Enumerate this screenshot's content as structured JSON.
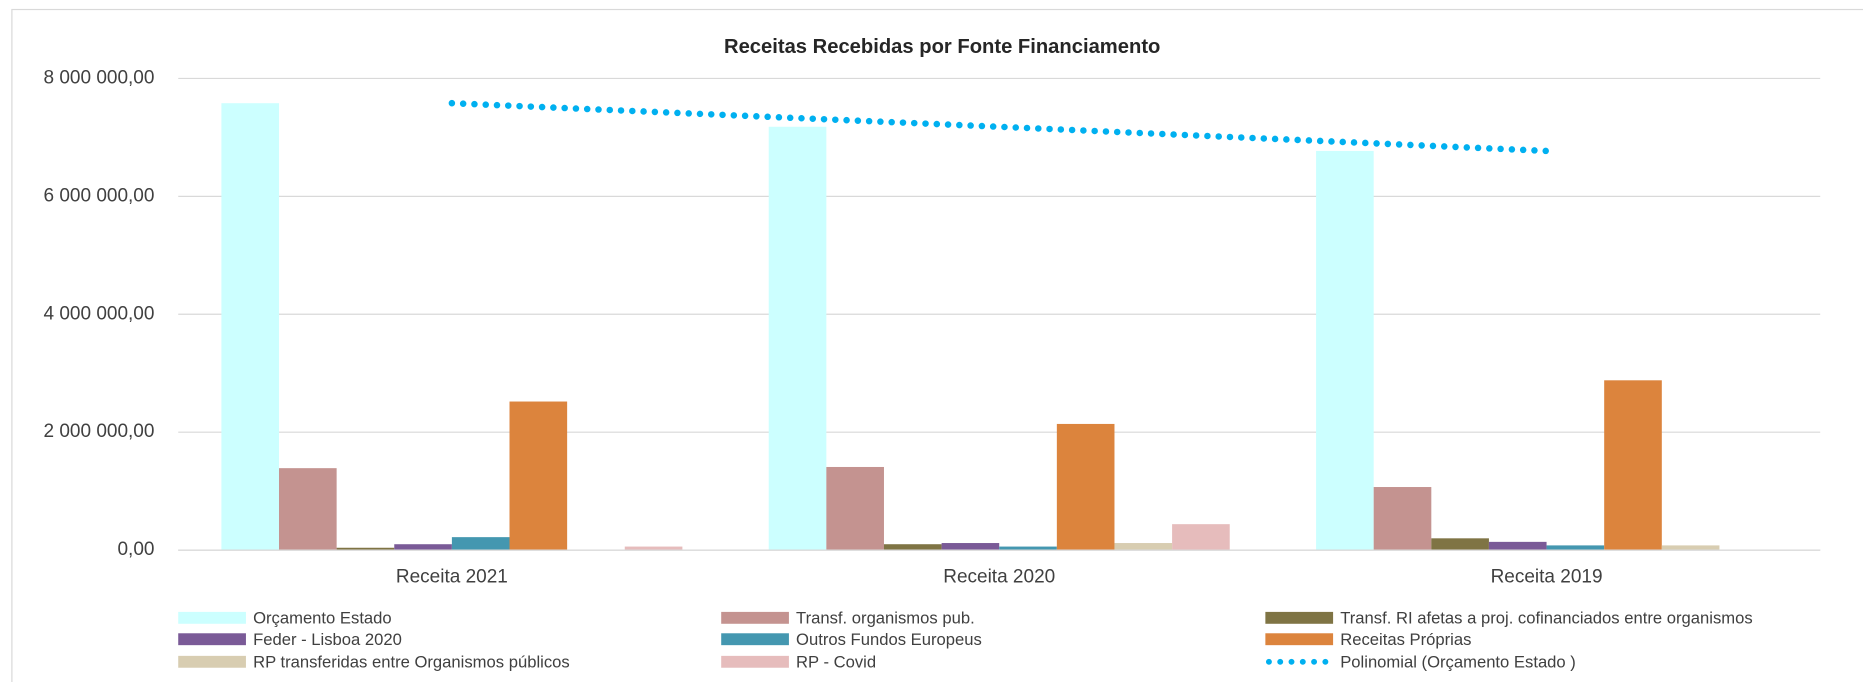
{
  "chart_data": {
    "type": "bar",
    "title": "Receitas Recebidas por Fonte Financiamento",
    "categories": [
      "Receita 2021",
      "Receita 2020",
      "Receita 2019"
    ],
    "series": [
      {
        "name": "Orçamento Estado",
        "color": "#ccffff",
        "values": [
          7580000,
          7180000,
          6770000
        ]
      },
      {
        "name": "Transf. organismos pub.",
        "color": "#c49390",
        "values": [
          1390000,
          1410000,
          1070000
        ]
      },
      {
        "name": "Transf. RI afetas a proj. cofinanciados entre organismos",
        "color": "#7f7444",
        "values": [
          40000,
          100000,
          200000
        ]
      },
      {
        "name": "Feder - Lisboa 2020",
        "color": "#7a5a97",
        "values": [
          100000,
          120000,
          140000
        ]
      },
      {
        "name": "Outros Fundos Europeus",
        "color": "#4497b0",
        "values": [
          220000,
          60000,
          80000
        ]
      },
      {
        "name": "Receitas Próprias",
        "color": "#dc843d",
        "values": [
          2520000,
          2140000,
          2880000
        ]
      },
      {
        "name": "RP transferidas entre Organismos públicos",
        "color": "#d8cdb1",
        "values": [
          0,
          120000,
          80000
        ]
      },
      {
        "name": "RP - Covid",
        "color": "#e6bcbc",
        "values": [
          60000,
          440000,
          0
        ]
      },
      {
        "name": "Polinomial (Orçamento Estado )",
        "color": "#00b0f0",
        "type": "line",
        "dotted": true,
        "values": [
          7580000,
          7180000,
          6770000
        ]
      }
    ],
    "ylim": [
      0,
      8000000
    ],
    "yticks": [
      {
        "value": 0,
        "label": "0,00"
      },
      {
        "value": 2000000,
        "label": "2 000 000,00"
      },
      {
        "value": 4000000,
        "label": "4 000 000,00"
      },
      {
        "value": 6000000,
        "label": "6 000 000,00"
      },
      {
        "value": 8000000,
        "label": "8 000 000,00"
      }
    ],
    "grid": true,
    "legend": "bottom"
  }
}
